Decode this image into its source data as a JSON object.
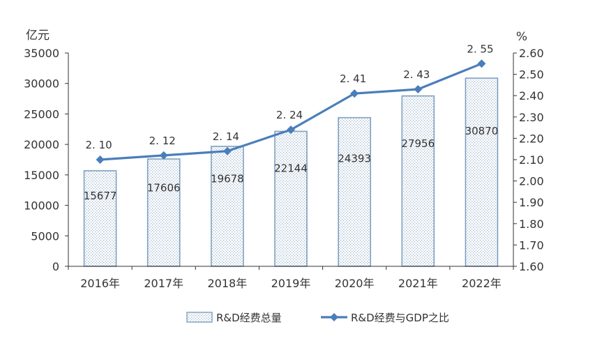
{
  "chart_data": {
    "type": "bar",
    "categories": [
      "2016年",
      "2017年",
      "2018年",
      "2019年",
      "2020年",
      "2021年",
      "2022年"
    ],
    "series": [
      {
        "name": "R&D经费总量",
        "type": "bar",
        "axis": "left",
        "values": [
          15677,
          17606,
          19678,
          22144,
          24393,
          27956,
          30870
        ],
        "labels": [
          "15677",
          "17606",
          "19678",
          "22144",
          "24393",
          "27956",
          "30870"
        ]
      },
      {
        "name": "R&D经费与GDP之比",
        "type": "line",
        "axis": "right",
        "values": [
          2.1,
          2.12,
          2.14,
          2.24,
          2.41,
          2.43,
          2.55
        ],
        "labels": [
          "2. 10",
          "2. 12",
          "2. 14",
          "2. 24",
          "2. 41",
          "2. 43",
          "2. 55"
        ]
      }
    ],
    "y_left": {
      "unit": "亿元",
      "ylim": [
        0,
        35000
      ],
      "ticks": [
        "0",
        "5000",
        "10000",
        "15000",
        "20000",
        "25000",
        "30000",
        "35000"
      ]
    },
    "y_right": {
      "unit": "%",
      "ylim": [
        1.6,
        2.6
      ],
      "ticks": [
        "1.60",
        "1.70",
        "1.80",
        "1.90",
        "2.00",
        "2.10",
        "2.20",
        "2.30",
        "2.40",
        "2.50",
        "2.60"
      ]
    },
    "grid": false,
    "legend_position": "bottom",
    "colors": {
      "bar_fill": "#dfe8f1",
      "bar_stroke": "#7f9fc0",
      "line": "#4a7ebb",
      "axis": "#333333"
    }
  }
}
